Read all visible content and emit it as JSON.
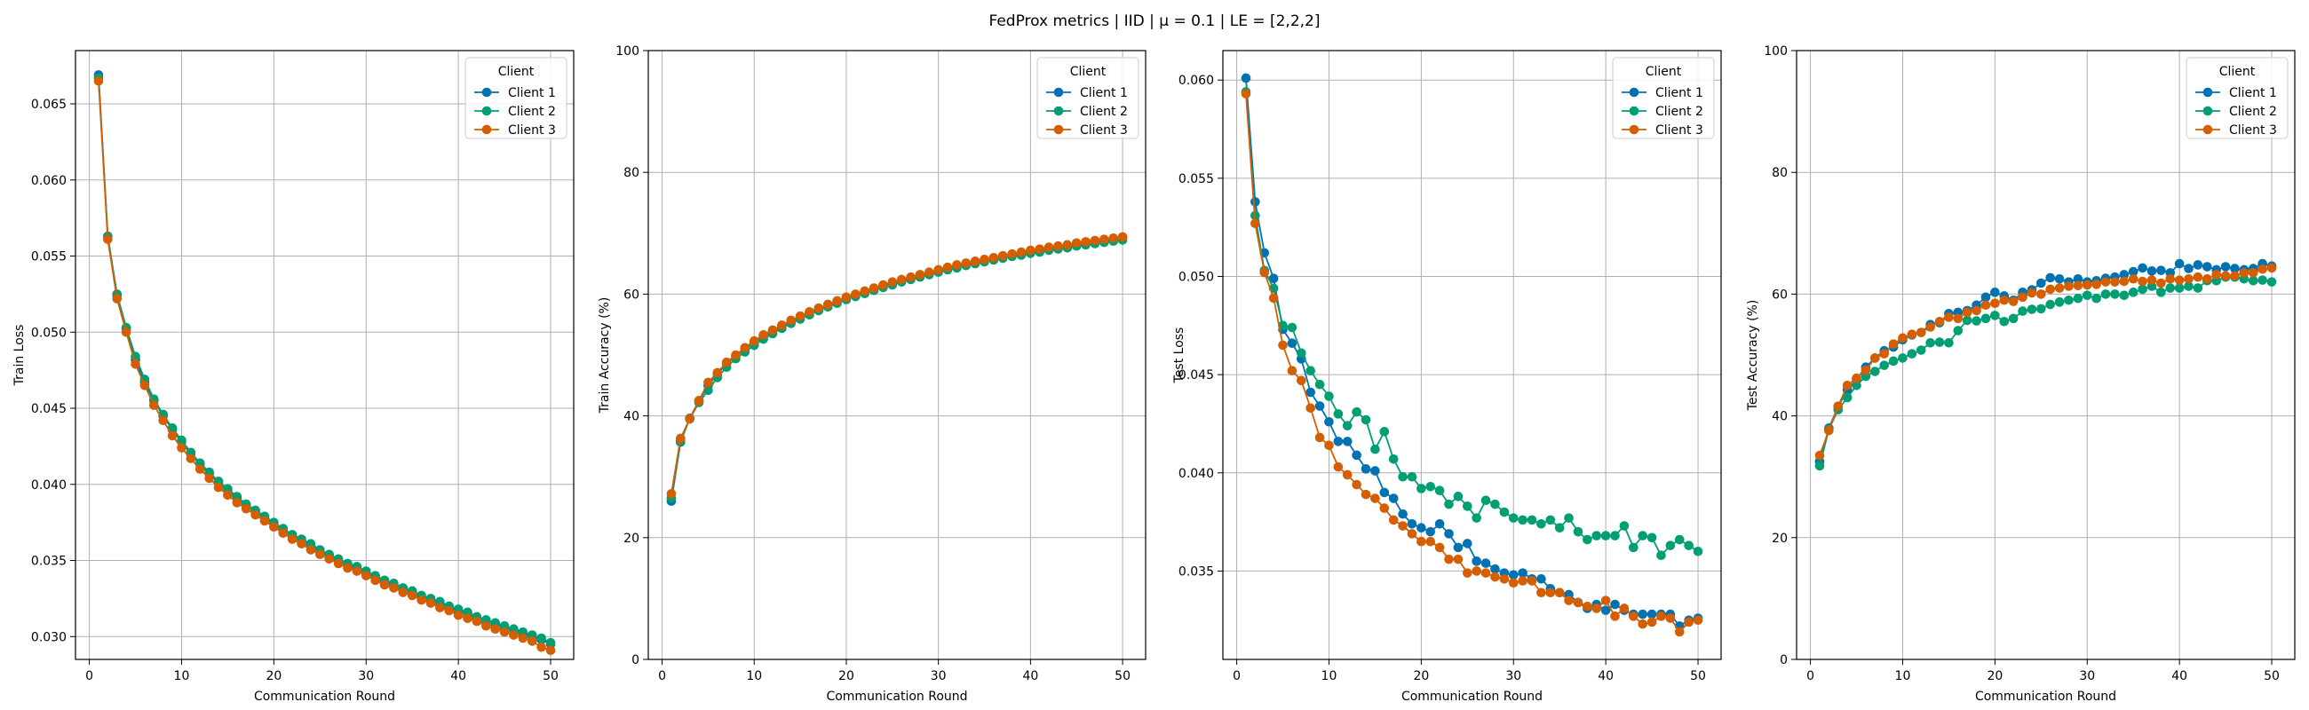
{
  "figure": {
    "suptitle": "FedProx metrics | IID | μ = 0.1 | LE = [2,2,2]"
  },
  "chart_data": [
    {
      "type": "line",
      "title": "",
      "xlabel": "Communication Round",
      "ylabel": "Train Loss",
      "xlim": [
        -1.5,
        52.5
      ],
      "ylim": [
        0.0285,
        0.0685
      ],
      "xticks": [
        0,
        10,
        20,
        30,
        40,
        50
      ],
      "yticks": [
        0.03,
        0.035,
        0.04,
        0.045,
        0.05,
        0.055,
        0.06,
        0.065
      ],
      "ytick_labels": [
        "0.030",
        "0.035",
        "0.040",
        "0.045",
        "0.050",
        "0.055",
        "0.060",
        "0.065"
      ],
      "grid": true,
      "legend_title": "Client",
      "legend_position": "upper right",
      "x": [
        1,
        2,
        3,
        4,
        5,
        6,
        7,
        8,
        9,
        10,
        11,
        12,
        13,
        14,
        15,
        16,
        17,
        18,
        19,
        20,
        21,
        22,
        23,
        24,
        25,
        26,
        27,
        28,
        29,
        30,
        31,
        32,
        33,
        34,
        35,
        36,
        37,
        38,
        39,
        40,
        41,
        42,
        43,
        44,
        45,
        46,
        47,
        48,
        49,
        50
      ],
      "series": [
        {
          "name": "Client 1",
          "color": "#0072B2",
          "values": [
            0.0669,
            0.0563,
            0.0524,
            0.0502,
            0.0482,
            0.0467,
            0.0455,
            0.0445,
            0.0436,
            0.0428,
            0.042,
            0.0413,
            0.0407,
            0.0401,
            0.0396,
            0.0391,
            0.0386,
            0.0382,
            0.0378,
            0.0374,
            0.037,
            0.0366,
            0.0363,
            0.036,
            0.0356,
            0.0353,
            0.035,
            0.0347,
            0.0345,
            0.0342,
            0.0339,
            0.0336,
            0.0334,
            0.0331,
            0.0329,
            0.0326,
            0.0324,
            0.0322,
            0.0319,
            0.0317,
            0.0315,
            0.0312,
            0.031,
            0.0308,
            0.0306,
            0.0304,
            0.0302,
            0.03,
            0.0298,
            0.0295
          ]
        },
        {
          "name": "Client 2",
          "color": "#009E73",
          "values": [
            0.0667,
            0.0563,
            0.0525,
            0.0503,
            0.0484,
            0.0469,
            0.0456,
            0.0446,
            0.0437,
            0.0429,
            0.0421,
            0.0414,
            0.0408,
            0.0402,
            0.0397,
            0.0392,
            0.0387,
            0.0383,
            0.0379,
            0.0375,
            0.0371,
            0.0367,
            0.0364,
            0.0361,
            0.0357,
            0.0354,
            0.0351,
            0.0348,
            0.0346,
            0.0343,
            0.034,
            0.0337,
            0.0335,
            0.0332,
            0.033,
            0.0327,
            0.0325,
            0.0323,
            0.032,
            0.0318,
            0.0316,
            0.0313,
            0.0311,
            0.0309,
            0.0307,
            0.0305,
            0.0303,
            0.0301,
            0.0299,
            0.0296
          ]
        },
        {
          "name": "Client 3",
          "color": "#D55E00",
          "values": [
            0.0665,
            0.0561,
            0.0522,
            0.05,
            0.0479,
            0.0465,
            0.0452,
            0.0442,
            0.0432,
            0.0424,
            0.0417,
            0.041,
            0.0404,
            0.0398,
            0.0393,
            0.0388,
            0.0384,
            0.038,
            0.0376,
            0.0372,
            0.0368,
            0.0364,
            0.0361,
            0.0357,
            0.0354,
            0.0351,
            0.0348,
            0.0345,
            0.0343,
            0.034,
            0.0337,
            0.0334,
            0.0332,
            0.0329,
            0.0327,
            0.0324,
            0.0322,
            0.0319,
            0.0317,
            0.0314,
            0.0312,
            0.031,
            0.0307,
            0.0305,
            0.0303,
            0.0301,
            0.0299,
            0.0297,
            0.0293,
            0.0291
          ]
        }
      ]
    },
    {
      "type": "line",
      "title": "",
      "xlabel": "Communication Round",
      "ylabel": "Train Accuracy (%)",
      "xlim": [
        -1.5,
        52.5
      ],
      "ylim": [
        0,
        100
      ],
      "xticks": [
        0,
        10,
        20,
        30,
        40,
        50
      ],
      "yticks": [
        0,
        20,
        40,
        60,
        80,
        100
      ],
      "ytick_labels": [
        "0",
        "20",
        "40",
        "60",
        "80",
        "100"
      ],
      "grid": true,
      "legend_title": "Client",
      "legend_position": "upper right",
      "x": [
        1,
        2,
        3,
        4,
        5,
        6,
        7,
        8,
        9,
        10,
        11,
        12,
        13,
        14,
        15,
        16,
        17,
        18,
        19,
        20,
        21,
        22,
        23,
        24,
        25,
        26,
        27,
        28,
        29,
        30,
        31,
        32,
        33,
        34,
        35,
        36,
        37,
        38,
        39,
        40,
        41,
        42,
        43,
        44,
        45,
        46,
        47,
        48,
        49,
        50
      ],
      "series": [
        {
          "name": "Client 1",
          "color": "#0072B2",
          "values": [
            26.0,
            35.7,
            39.6,
            42.5,
            45.0,
            46.9,
            48.6,
            49.8,
            51.0,
            52.0,
            53.0,
            53.9,
            54.7,
            55.5,
            56.3,
            57.0,
            57.6,
            58.3,
            58.8,
            59.4,
            59.9,
            60.4,
            60.9,
            61.4,
            61.8,
            62.3,
            62.7,
            63.1,
            63.5,
            63.9,
            64.3,
            64.6,
            65.0,
            65.3,
            65.6,
            65.9,
            66.2,
            66.5,
            66.8,
            67.0,
            67.3,
            67.5,
            67.8,
            68.0,
            68.3,
            68.5,
            68.7,
            68.9,
            69.1,
            69.3
          ]
        },
        {
          "name": "Client 2",
          "color": "#009E73",
          "values": [
            26.5,
            35.9,
            39.5,
            42.2,
            44.2,
            46.3,
            48.0,
            49.4,
            50.5,
            51.6,
            52.6,
            53.5,
            54.4,
            55.2,
            55.9,
            56.6,
            57.3,
            57.9,
            58.5,
            59.1,
            59.6,
            60.1,
            60.6,
            61.1,
            61.5,
            62.0,
            62.4,
            62.8,
            63.2,
            63.6,
            64.0,
            64.3,
            64.7,
            65.0,
            65.3,
            65.6,
            65.9,
            66.2,
            66.4,
            66.7,
            66.9,
            67.2,
            67.4,
            67.6,
            67.9,
            68.1,
            68.3,
            68.5,
            68.7,
            68.9
          ]
        },
        {
          "name": "Client 3",
          "color": "#D55E00",
          "values": [
            27.2,
            36.3,
            39.5,
            42.5,
            45.5,
            47.1,
            48.8,
            50.0,
            51.2,
            52.3,
            53.3,
            54.1,
            54.9,
            55.7,
            56.4,
            57.1,
            57.7,
            58.3,
            58.9,
            59.5,
            60.0,
            60.5,
            61.0,
            61.5,
            62.0,
            62.4,
            62.8,
            63.2,
            63.6,
            64.0,
            64.4,
            64.8,
            65.1,
            65.4,
            65.7,
            66.0,
            66.3,
            66.6,
            66.9,
            67.2,
            67.4,
            67.7,
            67.9,
            68.1,
            68.4,
            68.6,
            68.8,
            69.0,
            69.2,
            69.4
          ]
        }
      ]
    },
    {
      "type": "line",
      "title": "",
      "xlabel": "Communication Round",
      "ylabel": "Test Loss",
      "xlim": [
        -1.5,
        52.5
      ],
      "ylim": [
        0.0305,
        0.0615
      ],
      "xticks": [
        0,
        10,
        20,
        30,
        40,
        50
      ],
      "yticks": [
        0.035,
        0.04,
        0.045,
        0.05,
        0.055,
        0.06
      ],
      "ytick_labels": [
        "0.035",
        "0.040",
        "0.045",
        "0.050",
        "0.055",
        "0.060"
      ],
      "grid": true,
      "legend_title": "Client",
      "legend_position": "upper right",
      "x": [
        1,
        2,
        3,
        4,
        5,
        6,
        7,
        8,
        9,
        10,
        11,
        12,
        13,
        14,
        15,
        16,
        17,
        18,
        19,
        20,
        21,
        22,
        23,
        24,
        25,
        26,
        27,
        28,
        29,
        30,
        31,
        32,
        33,
        34,
        35,
        36,
        37,
        38,
        39,
        40,
        41,
        42,
        43,
        44,
        45,
        46,
        47,
        48,
        49,
        50
      ],
      "series": [
        {
          "name": "Client 1",
          "color": "#0072B2",
          "values": [
            0.0601,
            0.0538,
            0.0512,
            0.0499,
            0.0473,
            0.0466,
            0.0458,
            0.0441,
            0.0434,
            0.0426,
            0.0416,
            0.0416,
            0.0409,
            0.0402,
            0.0401,
            0.039,
            0.0387,
            0.0379,
            0.0374,
            0.0372,
            0.037,
            0.0374,
            0.0369,
            0.0362,
            0.0364,
            0.0355,
            0.0354,
            0.0351,
            0.0349,
            0.0348,
            0.0349,
            0.0346,
            0.0346,
            0.0341,
            0.0339,
            0.0338,
            0.0334,
            0.0331,
            0.0333,
            0.033,
            0.0333,
            0.033,
            0.0328,
            0.0328,
            0.0328,
            0.0328,
            0.0328,
            0.0322,
            0.0325,
            0.0326
          ]
        },
        {
          "name": "Client 2",
          "color": "#009E73",
          "values": [
            0.0594,
            0.0531,
            0.0503,
            0.0494,
            0.0475,
            0.0474,
            0.0461,
            0.0452,
            0.0445,
            0.0439,
            0.043,
            0.0424,
            0.0431,
            0.0427,
            0.0412,
            0.0421,
            0.0407,
            0.0398,
            0.0398,
            0.0392,
            0.0393,
            0.0391,
            0.0384,
            0.0388,
            0.0383,
            0.0377,
            0.0386,
            0.0384,
            0.038,
            0.0377,
            0.0376,
            0.0376,
            0.0374,
            0.0376,
            0.0372,
            0.0377,
            0.037,
            0.0366,
            0.0368,
            0.0368,
            0.0368,
            0.0373,
            0.0362,
            0.0368,
            0.0367,
            0.0358,
            0.0363,
            0.0366,
            0.0363,
            0.036
          ]
        },
        {
          "name": "Client 3",
          "color": "#D55E00",
          "values": [
            0.0593,
            0.0527,
            0.0502,
            0.0489,
            0.0465,
            0.0452,
            0.0447,
            0.0433,
            0.0418,
            0.0414,
            0.0403,
            0.0399,
            0.0394,
            0.0389,
            0.0387,
            0.0382,
            0.0376,
            0.0373,
            0.0369,
            0.0365,
            0.0365,
            0.0362,
            0.0356,
            0.0356,
            0.0349,
            0.035,
            0.0349,
            0.0347,
            0.0346,
            0.0344,
            0.0345,
            0.0345,
            0.0339,
            0.0339,
            0.0339,
            0.0335,
            0.0334,
            0.0332,
            0.0331,
            0.0335,
            0.0327,
            0.0331,
            0.0327,
            0.0323,
            0.0324,
            0.0327,
            0.0326,
            0.0319,
            0.0324,
            0.0325
          ]
        }
      ]
    },
    {
      "type": "line",
      "title": "",
      "xlabel": "Communication Round",
      "ylabel": "Test Accuracy (%)",
      "xlim": [
        -1.5,
        52.5
      ],
      "ylim": [
        0,
        100
      ],
      "xticks": [
        0,
        10,
        20,
        30,
        40,
        50
      ],
      "yticks": [
        0,
        20,
        40,
        60,
        80,
        100
      ],
      "ytick_labels": [
        "0",
        "20",
        "40",
        "60",
        "80",
        "100"
      ],
      "grid": true,
      "legend_title": "Client",
      "legend_position": "upper right",
      "x": [
        1,
        2,
        3,
        4,
        5,
        6,
        7,
        8,
        9,
        10,
        11,
        12,
        13,
        14,
        15,
        16,
        17,
        18,
        19,
        20,
        21,
        22,
        23,
        24,
        25,
        26,
        27,
        28,
        29,
        30,
        31,
        32,
        33,
        34,
        35,
        36,
        37,
        38,
        39,
        40,
        41,
        42,
        43,
        44,
        45,
        46,
        47,
        48,
        49,
        50
      ],
      "series": [
        {
          "name": "Client 1",
          "color": "#0072B2",
          "values": [
            32.5,
            38.0,
            41.5,
            44.3,
            46.0,
            48.0,
            49.5,
            50.7,
            51.3,
            52.5,
            53.3,
            53.7,
            55.0,
            55.3,
            56.8,
            57.0,
            57.3,
            58.2,
            59.5,
            60.3,
            59.7,
            59.0,
            60.3,
            60.7,
            61.8,
            62.7,
            62.5,
            62.0,
            62.5,
            62.0,
            62.2,
            62.6,
            62.8,
            63.2,
            63.7,
            64.3,
            63.8,
            63.9,
            63.5,
            65.0,
            64.2,
            64.8,
            64.5,
            64.0,
            64.5,
            64.2,
            64.0,
            64.2,
            65.0,
            64.6
          ]
        },
        {
          "name": "Client 2",
          "color": "#009E73",
          "values": [
            31.8,
            37.8,
            41.0,
            43.0,
            45.0,
            46.5,
            47.3,
            48.3,
            49.0,
            49.5,
            50.2,
            50.8,
            52.0,
            52.1,
            52.0,
            54.0,
            55.7,
            55.6,
            56.0,
            56.5,
            55.5,
            56.0,
            57.2,
            57.5,
            57.6,
            58.3,
            58.7,
            59.0,
            59.3,
            59.8,
            59.3,
            60.0,
            60.0,
            59.8,
            60.3,
            60.8,
            61.3,
            60.3,
            61.0,
            61.0,
            61.3,
            61.0,
            62.2,
            62.2,
            62.8,
            62.8,
            62.5,
            62.2,
            62.3,
            62.0
          ]
        },
        {
          "name": "Client 3",
          "color": "#D55E00",
          "values": [
            33.5,
            37.6,
            41.6,
            45.0,
            46.2,
            47.5,
            49.5,
            50.2,
            51.8,
            52.8,
            53.4,
            53.7,
            54.6,
            55.5,
            56.2,
            56.0,
            57.0,
            57.3,
            58.2,
            58.5,
            59.0,
            58.8,
            59.5,
            60.2,
            60.0,
            60.8,
            61.0,
            61.3,
            61.4,
            61.5,
            61.6,
            62.0,
            62.0,
            62.1,
            62.5,
            62.1,
            62.3,
            61.8,
            62.5,
            62.3,
            62.5,
            62.8,
            62.5,
            63.2,
            63.0,
            63.0,
            63.5,
            63.5,
            64.1,
            64.3
          ]
        }
      ]
    }
  ]
}
